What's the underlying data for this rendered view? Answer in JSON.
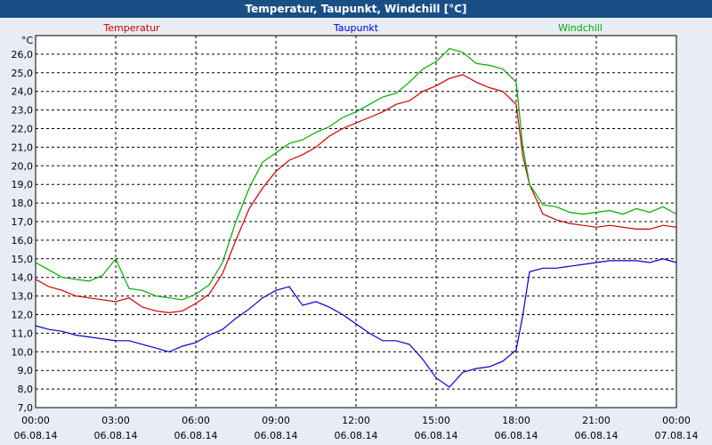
{
  "window": {
    "title": "Temperatur, Taupunkt, Windchill [°C]"
  },
  "colors": {
    "title_bar": "#1a4f86",
    "plot_bg": "#ffffff",
    "temperatur": "#cc0000",
    "taupunkt": "#0000cc",
    "windchill": "#00aa00"
  },
  "chart_data": {
    "type": "line",
    "title": "Temperatur, Taupunkt, Windchill [°C]",
    "ylabel": "°C",
    "xlabel": "",
    "ylim": [
      7.0,
      27.0
    ],
    "xlim": [
      0,
      24
    ],
    "grid": true,
    "legend_placement": "top",
    "y_ticks": [
      "7,0",
      "8,0",
      "9,0",
      "10,0",
      "11,0",
      "12,0",
      "13,0",
      "14,0",
      "15,0",
      "16,0",
      "17,0",
      "18,0",
      "19,0",
      "20,0",
      "21,0",
      "22,0",
      "23,0",
      "24,0",
      "25,0",
      "26,0"
    ],
    "x_ticks": [
      {
        "time": "00:00",
        "date": "06.08.14"
      },
      {
        "time": "03:00",
        "date": "06.08.14"
      },
      {
        "time": "06:00",
        "date": "06.08.14"
      },
      {
        "time": "09:00",
        "date": "06.08.14"
      },
      {
        "time": "12:00",
        "date": "06.08.14"
      },
      {
        "time": "15:00",
        "date": "06.08.14"
      },
      {
        "time": "18:00",
        "date": "06.08.14"
      },
      {
        "time": "21:00",
        "date": "06.08.14"
      },
      {
        "time": "00:00",
        "date": "07.08.14"
      }
    ],
    "series": [
      {
        "name": "Temperatur",
        "color": "#cc0000",
        "x": [
          0,
          0.5,
          1,
          1.5,
          2,
          2.5,
          3,
          3.5,
          4,
          4.5,
          5,
          5.5,
          6,
          6.5,
          7,
          7.5,
          8,
          8.5,
          9,
          9.5,
          10,
          10.5,
          11,
          11.5,
          12,
          12.5,
          13,
          13.5,
          14,
          14.5,
          15,
          15.5,
          16,
          16.5,
          17,
          17.5,
          18,
          18.25,
          18.5,
          19,
          19.5,
          20,
          20.5,
          21,
          21.5,
          22,
          22.5,
          23,
          23.5,
          24
        ],
        "y": [
          13.9,
          13.5,
          13.3,
          13.0,
          12.9,
          12.8,
          12.7,
          12.9,
          12.4,
          12.2,
          12.1,
          12.2,
          12.6,
          13.1,
          14.2,
          16.0,
          17.7,
          18.8,
          19.7,
          20.3,
          20.6,
          21.0,
          21.6,
          22.0,
          22.3,
          22.6,
          22.9,
          23.3,
          23.5,
          24.0,
          24.3,
          24.7,
          24.9,
          24.5,
          24.2,
          24.0,
          23.3,
          20.5,
          19.0,
          17.4,
          17.1,
          16.9,
          16.8,
          16.7,
          16.8,
          16.7,
          16.6,
          16.6,
          16.8,
          16.7
        ]
      },
      {
        "name": "Taupunkt",
        "color": "#0000cc",
        "x": [
          0,
          0.5,
          1,
          1.5,
          2,
          2.5,
          3,
          3.5,
          4,
          4.5,
          5,
          5.5,
          6,
          6.5,
          7,
          7.5,
          8,
          8.5,
          9,
          9.5,
          10,
          10.5,
          11,
          11.5,
          12,
          12.5,
          13,
          13.5,
          14,
          14.5,
          15,
          15.5,
          16,
          16.5,
          17,
          17.5,
          18,
          18.25,
          18.5,
          19,
          19.5,
          20,
          20.5,
          21,
          21.5,
          22,
          22.5,
          23,
          23.5,
          24
        ],
        "y": [
          11.4,
          11.2,
          11.1,
          10.9,
          10.8,
          10.7,
          10.6,
          10.6,
          10.4,
          10.2,
          10.0,
          10.3,
          10.5,
          10.9,
          11.2,
          11.8,
          12.3,
          12.9,
          13.3,
          13.5,
          12.5,
          12.7,
          12.4,
          12.0,
          11.5,
          11.0,
          10.6,
          10.6,
          10.4,
          9.6,
          8.6,
          8.1,
          8.9,
          9.1,
          9.2,
          9.5,
          10.1,
          12.0,
          14.3,
          14.5,
          14.5,
          14.6,
          14.7,
          14.8,
          14.9,
          14.9,
          14.9,
          14.8,
          15.0,
          14.8
        ]
      },
      {
        "name": "Windchill",
        "color": "#00aa00",
        "x": [
          0,
          0.5,
          1,
          1.5,
          2,
          2.5,
          3,
          3.5,
          4,
          4.5,
          5,
          5.5,
          6,
          6.5,
          7,
          7.5,
          8,
          8.5,
          9,
          9.5,
          10,
          10.5,
          11,
          11.5,
          12,
          12.5,
          13,
          13.5,
          14,
          14.5,
          15,
          15.5,
          16,
          16.5,
          17,
          17.5,
          18,
          18.25,
          18.5,
          19,
          19.5,
          20,
          20.5,
          21,
          21.5,
          22,
          22.5,
          23,
          23.5,
          24
        ],
        "y": [
          14.8,
          14.4,
          14.0,
          13.9,
          13.8,
          14.1,
          15.0,
          13.4,
          13.3,
          13.0,
          12.9,
          12.8,
          13.1,
          13.6,
          14.8,
          17.0,
          18.8,
          20.2,
          20.7,
          21.2,
          21.4,
          21.8,
          22.1,
          22.6,
          22.9,
          23.3,
          23.7,
          23.9,
          24.5,
          25.2,
          25.6,
          26.3,
          26.1,
          25.5,
          25.4,
          25.2,
          24.5,
          21.0,
          19.0,
          17.9,
          17.8,
          17.5,
          17.4,
          17.5,
          17.6,
          17.4,
          17.7,
          17.5,
          17.8,
          17.4
        ]
      }
    ]
  }
}
